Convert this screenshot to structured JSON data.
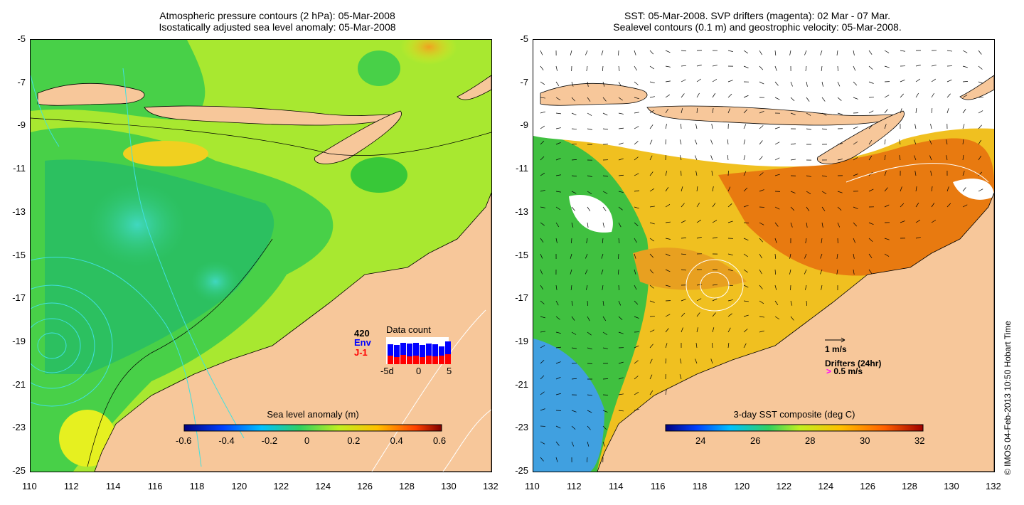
{
  "left_panel": {
    "title_line1": "Atmospheric pressure contours (2 hPa): 05-Mar-2008",
    "title_line2": "Isostatically adjusted sea level anomaly: 05-Mar-2008",
    "colorbar": {
      "label": "Sea level anomaly (m)",
      "ticks": [
        "-0.6",
        "-0.4",
        "-0.2",
        "0",
        "0.2",
        "0.4",
        "0.6"
      ]
    },
    "data_count": {
      "title": "Data count",
      "max_label": "420",
      "series": [
        {
          "name": "Env",
          "color": "#0000ff"
        },
        {
          "name": "J-1",
          "color": "#ff0000"
        }
      ],
      "x_ticks": [
        "-5d",
        "0",
        "5"
      ]
    }
  },
  "right_panel": {
    "title_line1": "SST: 05-Mar-2008. SVP drifters (magenta): 02 Mar - 07 Mar.",
    "title_line2": "Sealevel contours (0.1 m) and geostrophic velocity: 05-Mar-2008.",
    "colorbar": {
      "label": "3-day SST composite (deg C)",
      "ticks": [
        "24",
        "26",
        "28",
        "30",
        "32"
      ]
    },
    "velocity_scale_label": "1 m/s",
    "drifters_label": "Drifters (24hr)",
    "drifter_speed_label": "0.5 m/s"
  },
  "axes": {
    "x_ticks": [
      "110",
      "112",
      "114",
      "116",
      "118",
      "120",
      "122",
      "124",
      "126",
      "128",
      "130",
      "132"
    ],
    "y_ticks": [
      "-5",
      "-7",
      "-9",
      "-11",
      "-13",
      "-15",
      "-17",
      "-19",
      "-21",
      "-23",
      "-25"
    ]
  },
  "credit": "© IMOS 04-Feb-2013 10:50 Hobart Time",
  "colors": {
    "land": "#f7c79a",
    "ocean_green": "#4fd94a",
    "anomaly_yellow": "#e6f020",
    "sst_orange": "#e87a10",
    "contour_cyan": "#40e0e0",
    "drifter_magenta": "#ff00ff"
  }
}
